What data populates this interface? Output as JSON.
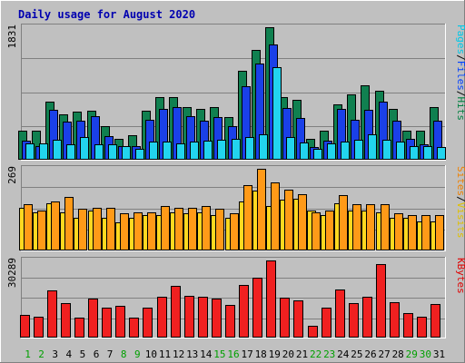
{
  "chart_data": {
    "type": "bar",
    "title": "Daily usage for August 2020",
    "days": [
      "1",
      "2",
      "3",
      "4",
      "5",
      "6",
      "7",
      "8",
      "9",
      "10",
      "11",
      "12",
      "13",
      "14",
      "15",
      "16",
      "17",
      "18",
      "19",
      "20",
      "21",
      "22",
      "23",
      "24",
      "25",
      "26",
      "27",
      "28",
      "29",
      "30",
      "31"
    ],
    "weekend_days": [
      "1",
      "2",
      "8",
      "9",
      "15",
      "16",
      "22",
      "23",
      "29",
      "30"
    ],
    "panels": [
      {
        "name": "traffic",
        "max_label": "1831",
        "ylim": [
          0,
          1831
        ],
        "legend": [
          {
            "text": "Pages",
            "color": "#00c8e8"
          },
          {
            "text": "/",
            "color": "#000000"
          },
          {
            "text": "Files",
            "color": "#0040ff"
          },
          {
            "text": "/",
            "color": "#000000"
          },
          {
            "text": "Hits",
            "color": "#008040"
          }
        ],
        "series": [
          {
            "name": "Hits",
            "color": "#108050",
            "values": [
              395,
              395,
              790,
              615,
              655,
              675,
              455,
              275,
              330,
              675,
              860,
              860,
              720,
              690,
              720,
              580,
              1220,
              1520,
              1831,
              860,
              820,
              275,
              395,
              760,
              900,
              1020,
              945,
              695,
              395,
              395,
              720
            ]
          },
          {
            "name": "Files",
            "color": "#1a40e8",
            "values": [
              255,
              175,
              680,
              515,
              535,
              595,
              315,
              175,
              175,
              545,
              700,
              720,
              595,
              535,
              580,
              455,
              1010,
              1320,
              1590,
              705,
              570,
              160,
              255,
              690,
              545,
              685,
              800,
              525,
              275,
              205,
              525
            ]
          },
          {
            "name": "Pages",
            "color": "#22d4ee",
            "values": [
              215,
              215,
              265,
              205,
              300,
              205,
              205,
              175,
              140,
              235,
              235,
              215,
              245,
              255,
              260,
              275,
              305,
              340,
              1280,
              305,
              230,
              145,
              215,
              245,
              270,
              340,
              270,
              235,
              175,
              175,
              160
            ]
          }
        ]
      },
      {
        "name": "visitors",
        "max_label": "269",
        "ylim": [
          0,
          269
        ],
        "legend": [
          {
            "text": "Sites",
            "color": "#f08000"
          },
          {
            "text": "/",
            "color": "#000000"
          },
          {
            "text": "Visits",
            "color": "#e0c000"
          }
        ],
        "series": [
          {
            "name": "Visits",
            "color": "#ffd820",
            "values": [
              140,
              125,
              155,
              125,
              105,
              130,
              105,
              90,
              105,
              115,
              115,
              125,
              120,
              125,
              115,
              105,
              160,
              195,
              145,
              165,
              170,
              130,
              115,
              155,
              130,
              130,
              125,
              105,
              105,
              95,
              95
            ]
          },
          {
            "name": "Sites",
            "color": "#ff9a18",
            "values": [
              150,
              130,
              160,
              175,
              135,
              140,
              140,
              120,
              125,
              125,
              145,
              140,
              140,
              145,
              135,
              120,
              215,
              269,
              225,
              200,
              185,
              125,
              130,
              180,
              150,
              150,
              150,
              120,
              115,
              115,
              115
            ]
          }
        ]
      },
      {
        "name": "kbytes",
        "max_label": "30289",
        "ylim": [
          0,
          30289
        ],
        "legend": [
          {
            "text": "KBytes",
            "color": "#e00000"
          }
        ],
        "series": [
          {
            "name": "KBytes",
            "color": "#f02020",
            "values": [
              8700,
              8000,
              18500,
              13500,
              7500,
              15000,
              11500,
              12200,
              7700,
              11700,
              15800,
              20300,
              16300,
              16000,
              15000,
              12800,
              20700,
              23300,
              30289,
              15500,
              14300,
              4500,
              11700,
              18600,
              13500,
              16000,
              29000,
              13800,
              9500,
              7800,
              13000
            ]
          }
        ]
      }
    ]
  }
}
